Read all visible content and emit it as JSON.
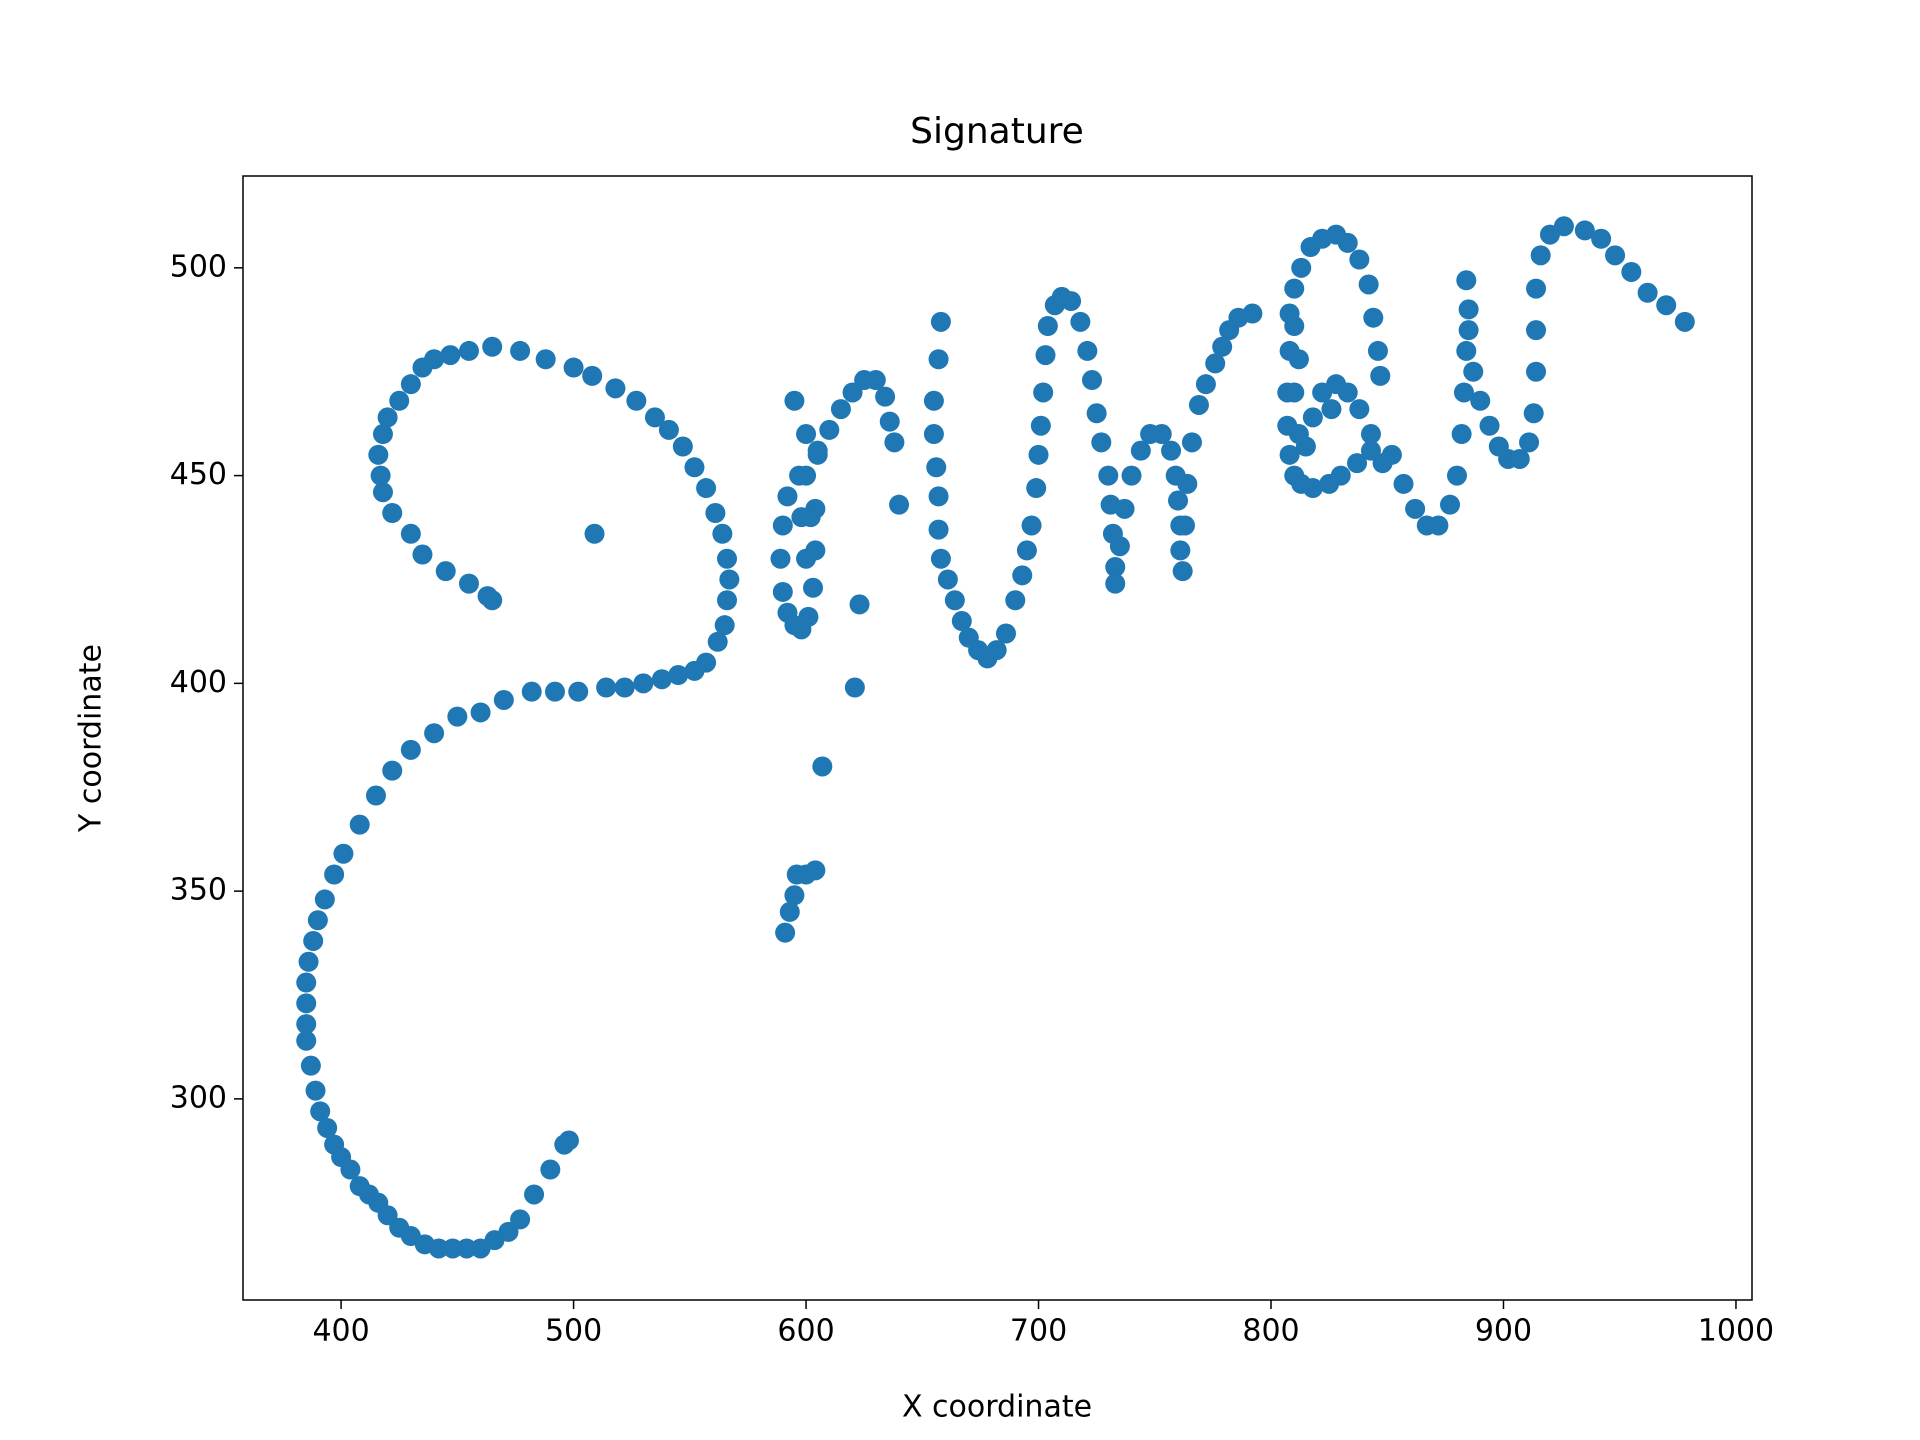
{
  "chart_data": {
    "type": "scatter",
    "title": "Signature",
    "x_label": "X coordinate",
    "y_label": "Y coordinate",
    "color": "#1f77b4",
    "grid": false,
    "xlim": [
      357.8,
      1006.9
    ],
    "ylim": [
      251.6,
      522.1
    ],
    "xticks": [
      400,
      500,
      600,
      700,
      800,
      900,
      1000
    ],
    "yticks": [
      300,
      350,
      400,
      450,
      500
    ],
    "x": [
      465,
      463,
      455,
      445,
      435,
      430,
      422,
      418,
      417,
      416,
      418,
      420,
      425,
      430,
      435,
      440,
      447,
      455,
      465,
      477,
      488,
      500,
      508,
      518,
      527,
      535,
      541,
      547,
      552,
      557,
      561,
      564,
      566,
      567,
      566,
      565,
      562,
      557,
      552,
      545,
      538,
      530,
      522,
      514,
      502,
      492,
      482,
      470,
      460,
      450,
      440,
      430,
      422,
      415,
      408,
      401,
      397,
      393,
      390,
      388,
      386,
      385,
      385,
      385,
      385,
      387,
      389,
      391,
      394,
      397,
      400,
      404,
      408,
      412,
      416,
      420,
      425,
      430,
      436,
      442,
      448,
      454,
      460,
      466,
      472,
      477,
      483,
      490,
      496,
      498,
      509,
      591,
      593,
      595,
      596,
      600,
      604,
      607,
      621,
      623,
      595,
      600,
      605,
      597,
      592,
      590,
      589,
      590,
      592,
      595,
      598,
      601,
      603,
      604,
      604,
      602,
      600,
      598,
      600,
      605,
      610,
      615,
      620,
      625,
      630,
      634,
      636,
      638,
      640,
      658,
      657,
      655,
      655,
      656,
      657,
      657,
      658,
      661,
      664,
      667,
      670,
      674,
      678,
      682,
      686,
      690,
      693,
      695,
      697,
      699,
      700,
      701,
      702,
      703,
      704,
      707,
      710,
      714,
      718,
      721,
      723,
      725,
      727,
      730,
      731,
      732,
      733,
      733,
      735,
      737,
      740,
      744,
      748,
      753,
      757,
      759,
      760,
      761,
      761,
      762,
      763,
      764,
      766,
      769,
      772,
      776,
      779,
      782,
      786,
      792,
      808,
      808,
      807,
      807,
      808,
      810,
      813,
      818,
      825,
      830,
      837,
      843,
      848,
      843,
      838,
      833,
      828,
      822,
      818,
      815,
      812,
      810,
      812,
      810,
      810,
      813,
      817,
      822,
      828,
      833,
      838,
      842,
      844,
      846,
      847,
      826,
      852,
      857,
      862,
      867,
      872,
      877,
      880,
      882,
      883,
      884,
      885,
      884,
      885,
      887,
      890,
      894,
      898,
      902,
      907,
      911,
      913,
      914,
      914,
      914,
      916,
      920,
      926,
      935,
      942,
      948,
      955,
      962,
      970,
      978
    ],
    "y": [
      420,
      421,
      424,
      427,
      431,
      436,
      441,
      446,
      450,
      455,
      460,
      464,
      468,
      472,
      476,
      478,
      479,
      480,
      481,
      480,
      478,
      476,
      474,
      471,
      468,
      464,
      461,
      457,
      452,
      447,
      441,
      436,
      430,
      425,
      420,
      414,
      410,
      405,
      403,
      402,
      401,
      400,
      399,
      399,
      398,
      398,
      398,
      396,
      393,
      392,
      388,
      384,
      379,
      373,
      366,
      359,
      354,
      348,
      343,
      338,
      333,
      328,
      323,
      318,
      314,
      308,
      302,
      297,
      293,
      289,
      286,
      283,
      279,
      277,
      275,
      272,
      269,
      267,
      265,
      264,
      264,
      264,
      264,
      266,
      268,
      271,
      277,
      283,
      289,
      290,
      436,
      340,
      345,
      349,
      354,
      354,
      355,
      380,
      399,
      419,
      468,
      460,
      455,
      450,
      445,
      438,
      430,
      422,
      417,
      414,
      413,
      416,
      423,
      432,
      442,
      440,
      430,
      440,
      450,
      456,
      461,
      466,
      470,
      473,
      473,
      469,
      463,
      458,
      443,
      487,
      478,
      468,
      460,
      452,
      445,
      437,
      430,
      425,
      420,
      415,
      411,
      408,
      406,
      408,
      412,
      420,
      426,
      432,
      438,
      447,
      455,
      462,
      470,
      479,
      486,
      491,
      493,
      492,
      487,
      480,
      473,
      465,
      458,
      450,
      443,
      436,
      428,
      424,
      433,
      442,
      450,
      456,
      460,
      460,
      456,
      450,
      444,
      438,
      432,
      427,
      438,
      448,
      458,
      467,
      472,
      477,
      481,
      485,
      488,
      489,
      489,
      480,
      470,
      462,
      455,
      450,
      448,
      447,
      448,
      450,
      453,
      456,
      453,
      460,
      466,
      470,
      472,
      470,
      464,
      457,
      460,
      470,
      478,
      486,
      495,
      500,
      505,
      507,
      508,
      506,
      502,
      496,
      488,
      480,
      474,
      466,
      455,
      448,
      442,
      438,
      438,
      443,
      450,
      460,
      470,
      480,
      490,
      497,
      485,
      475,
      468,
      462,
      457,
      454,
      454,
      458,
      465,
      475,
      485,
      495,
      503,
      508,
      510,
      509,
      507,
      503,
      499,
      494,
      491,
      487
    ]
  }
}
